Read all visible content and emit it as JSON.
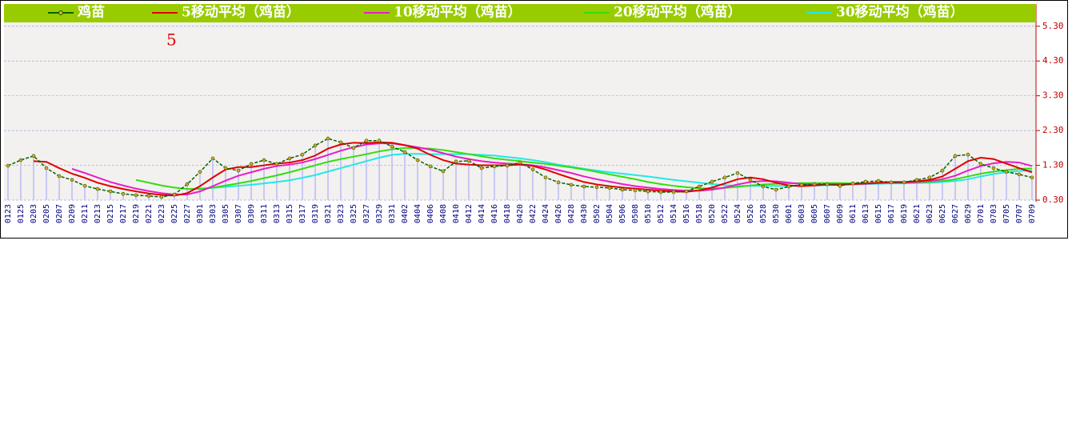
{
  "chart_data": {
    "type": "line",
    "annotation": "5",
    "categories": [
      "0123",
      "0125",
      "0203",
      "0205",
      "0207",
      "0209",
      "0211",
      "0213",
      "0215",
      "0217",
      "0219",
      "0221",
      "0223",
      "0225",
      "0227",
      "0301",
      "0303",
      "0305",
      "0307",
      "0309",
      "0311",
      "0313",
      "0315",
      "0317",
      "0319",
      "0321",
      "0323",
      "0325",
      "0327",
      "0329",
      "0331",
      "0402",
      "0404",
      "0406",
      "0408",
      "0410",
      "0412",
      "0414",
      "0416",
      "0418",
      "0420",
      "0422",
      "0424",
      "0426",
      "0428",
      "0430",
      "0502",
      "0504",
      "0506",
      "0508",
      "0510",
      "0512",
      "0514",
      "0516",
      "0518",
      "0520",
      "0522",
      "0524",
      "0526",
      "0528",
      "0530",
      "0601",
      "0603",
      "0605",
      "0607",
      "0609",
      "0611",
      "0613",
      "0615",
      "0617",
      "0619",
      "0621",
      "0623",
      "0625",
      "0627",
      "0629",
      "0701",
      "0703",
      "0705",
      "0707",
      "0709"
    ],
    "series": [
      {
        "name": "鸡苗",
        "color": "#006400",
        "values": [
          1.29,
          1.45,
          1.57,
          1.22,
          0.99,
          0.88,
          0.71,
          0.62,
          0.55,
          0.48,
          0.44,
          0.42,
          0.39,
          0.46,
          0.76,
          1.11,
          1.5,
          1.22,
          1.15,
          1.34,
          1.45,
          1.34,
          1.5,
          1.61,
          1.87,
          2.07,
          1.96,
          1.8,
          2.01,
          2.01,
          1.84,
          1.68,
          1.45,
          1.27,
          1.13,
          1.41,
          1.43,
          1.22,
          1.27,
          1.29,
          1.38,
          1.18,
          0.95,
          0.81,
          0.74,
          0.69,
          0.67,
          0.65,
          0.6,
          0.58,
          0.55,
          0.53,
          0.53,
          0.55,
          0.69,
          0.83,
          0.95,
          1.08,
          0.88,
          0.69,
          0.6,
          0.69,
          0.74,
          0.76,
          0.76,
          0.71,
          0.78,
          0.83,
          0.85,
          0.81,
          0.81,
          0.88,
          0.95,
          1.15,
          1.57,
          1.61,
          1.34,
          1.22,
          1.11,
          1.04,
          0.95
        ]
      },
      {
        "name": "5移动平均（鸡苗）",
        "color": "#e00000",
        "values": [
          null,
          null,
          1.42,
          1.4,
          1.22,
          1.06,
          0.94,
          0.8,
          0.7,
          0.62,
          0.55,
          0.49,
          0.45,
          0.43,
          0.5,
          0.7,
          0.95,
          1.18,
          1.25,
          1.25,
          1.3,
          1.35,
          1.38,
          1.45,
          1.58,
          1.78,
          1.9,
          1.95,
          1.94,
          1.96,
          1.95,
          1.88,
          1.78,
          1.6,
          1.45,
          1.35,
          1.32,
          1.3,
          1.3,
          1.3,
          1.32,
          1.28,
          1.18,
          1.05,
          0.93,
          0.82,
          0.75,
          0.7,
          0.66,
          0.63,
          0.6,
          0.57,
          0.55,
          0.54,
          0.58,
          0.66,
          0.78,
          0.9,
          0.95,
          0.9,
          0.8,
          0.72,
          0.7,
          0.72,
          0.75,
          0.75,
          0.76,
          0.78,
          0.8,
          0.82,
          0.82,
          0.84,
          0.88,
          0.98,
          1.2,
          1.42,
          1.52,
          1.48,
          1.35,
          1.22,
          1.1
        ]
      },
      {
        "name": "10移动平均（鸡苗）",
        "color": "#e81cc8",
        "values": [
          null,
          null,
          null,
          null,
          null,
          1.2,
          1.08,
          0.95,
          0.82,
          0.72,
          0.63,
          0.56,
          0.5,
          0.46,
          0.46,
          0.55,
          0.7,
          0.86,
          1.0,
          1.1,
          1.2,
          1.28,
          1.32,
          1.38,
          1.48,
          1.6,
          1.72,
          1.82,
          1.9,
          1.93,
          1.93,
          1.88,
          1.82,
          1.75,
          1.65,
          1.55,
          1.48,
          1.42,
          1.38,
          1.35,
          1.33,
          1.3,
          1.24,
          1.16,
          1.08,
          0.98,
          0.9,
          0.83,
          0.76,
          0.7,
          0.66,
          0.62,
          0.59,
          0.57,
          0.57,
          0.6,
          0.66,
          0.75,
          0.82,
          0.85,
          0.84,
          0.8,
          0.76,
          0.74,
          0.74,
          0.74,
          0.76,
          0.77,
          0.79,
          0.8,
          0.8,
          0.82,
          0.85,
          0.9,
          1.0,
          1.15,
          1.28,
          1.36,
          1.4,
          1.38,
          1.28
        ]
      },
      {
        "name": "20移动平均（鸡苗）",
        "color": "#33dd11",
        "values": [
          null,
          null,
          null,
          null,
          null,
          null,
          null,
          null,
          null,
          null,
          0.88,
          0.8,
          0.72,
          0.66,
          0.62,
          0.62,
          0.66,
          0.72,
          0.78,
          0.85,
          0.93,
          1.01,
          1.1,
          1.2,
          1.3,
          1.4,
          1.48,
          1.55,
          1.62,
          1.7,
          1.76,
          1.8,
          1.8,
          1.78,
          1.74,
          1.68,
          1.62,
          1.56,
          1.5,
          1.46,
          1.42,
          1.38,
          1.34,
          1.29,
          1.24,
          1.18,
          1.11,
          1.04,
          0.97,
          0.9,
          0.82,
          0.76,
          0.71,
          0.67,
          0.64,
          0.63,
          0.65,
          0.68,
          0.72,
          0.75,
          0.77,
          0.78,
          0.79,
          0.79,
          0.79,
          0.79,
          0.78,
          0.78,
          0.79,
          0.8,
          0.81,
          0.81,
          0.82,
          0.85,
          0.9,
          0.98,
          1.06,
          1.12,
          1.16,
          1.2,
          1.21
        ]
      },
      {
        "name": "30移动平均（鸡苗）",
        "color": "#22e8e8",
        "values": [
          null,
          null,
          null,
          null,
          null,
          null,
          null,
          null,
          null,
          null,
          null,
          null,
          null,
          null,
          0.62,
          0.63,
          0.65,
          0.68,
          0.71,
          0.74,
          0.78,
          0.82,
          0.87,
          0.94,
          1.02,
          1.12,
          1.22,
          1.32,
          1.42,
          1.52,
          1.6,
          1.63,
          1.63,
          1.62,
          1.62,
          1.62,
          1.62,
          1.6,
          1.58,
          1.54,
          1.5,
          1.45,
          1.39,
          1.32,
          1.26,
          1.2,
          1.15,
          1.1,
          1.06,
          1.02,
          0.98,
          0.93,
          0.88,
          0.84,
          0.8,
          0.76,
          0.73,
          0.71,
          0.71,
          0.71,
          0.71,
          0.71,
          0.72,
          0.72,
          0.73,
          0.74,
          0.75,
          0.76,
          0.77,
          0.78,
          0.78,
          0.79,
          0.8,
          0.82,
          0.85,
          0.9,
          0.98,
          1.05,
          1.1,
          1.14,
          1.15
        ]
      }
    ],
    "ylim": [
      0.3,
      5.41
    ],
    "yticks": [
      {
        "value": 0.3,
        "label": "0.30"
      },
      {
        "value": 1.3,
        "label": "1.30"
      },
      {
        "value": 2.3,
        "label": "2.30"
      },
      {
        "value": 3.3,
        "label": "3.30"
      },
      {
        "value": 4.3,
        "label": "4.30"
      },
      {
        "value": 5.3,
        "label": "5.30"
      }
    ],
    "grid": true,
    "bar_color": "#c8c8f4",
    "legend_color": "#99cc00"
  }
}
